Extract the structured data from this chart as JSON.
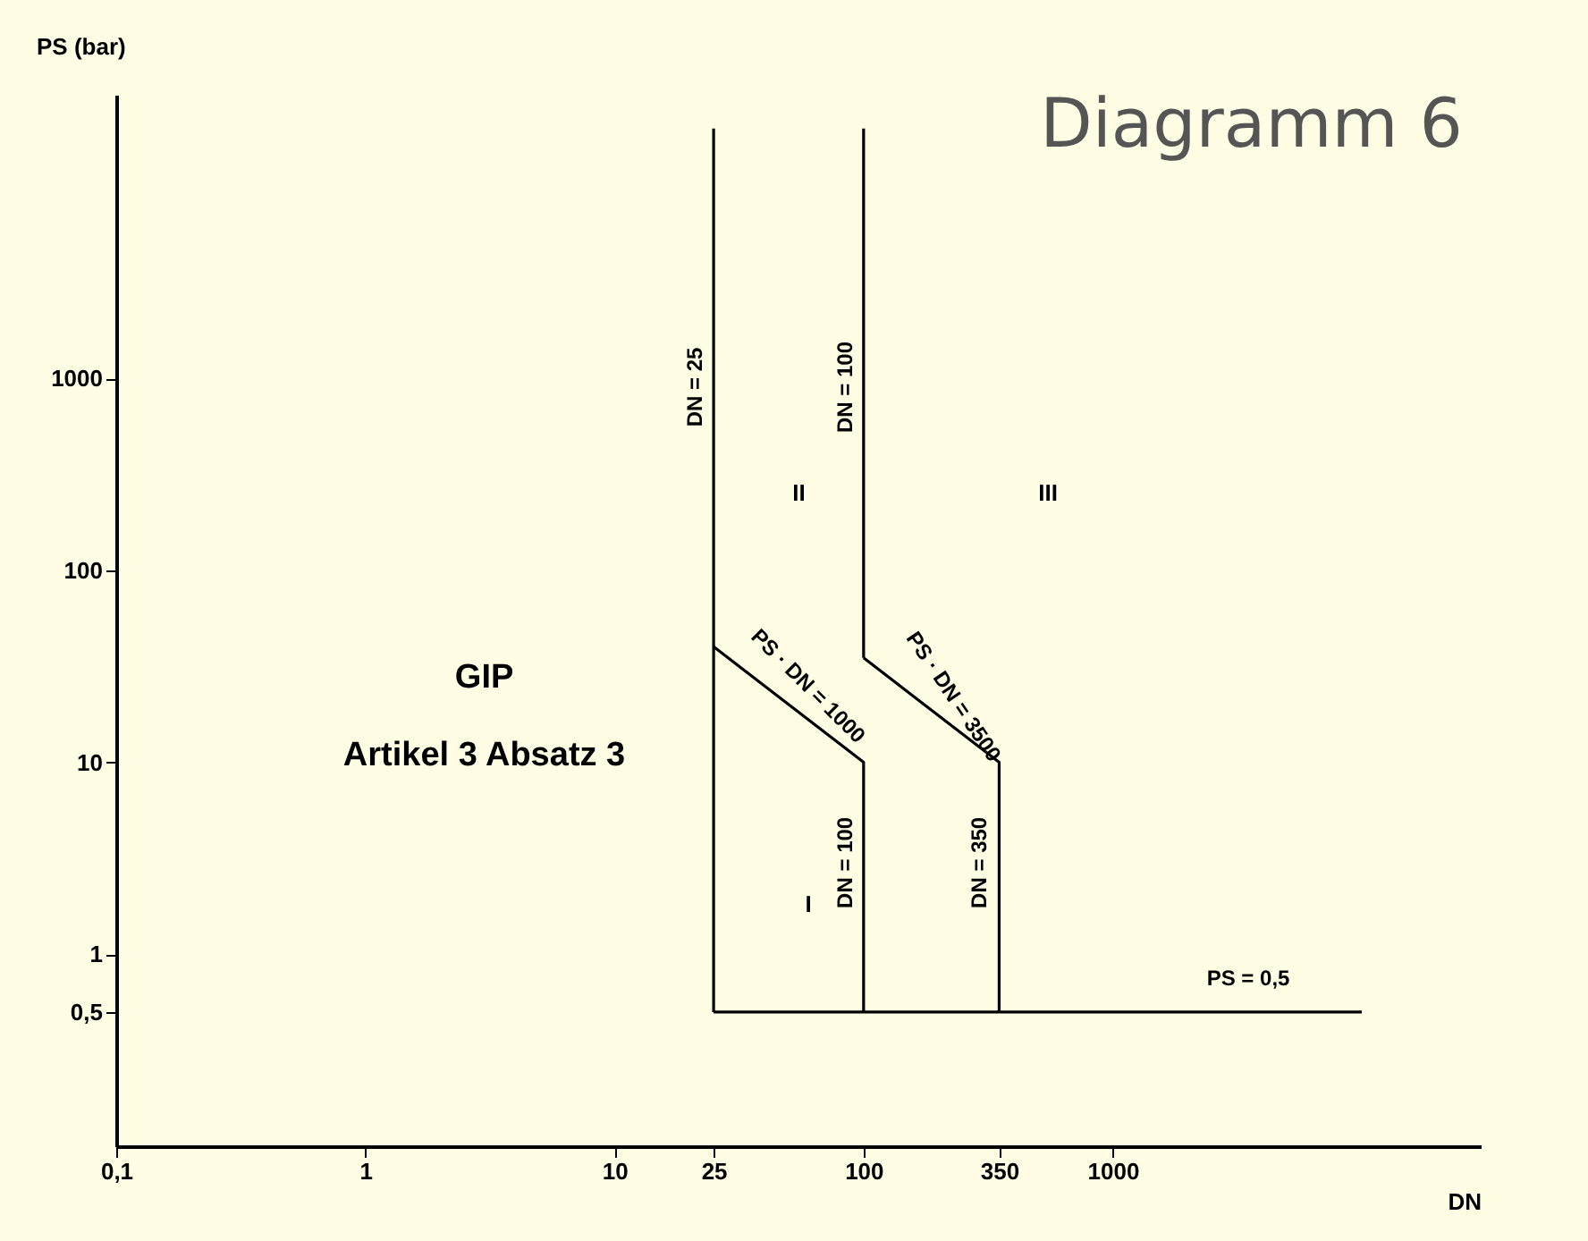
{
  "chart_data": {
    "type": "line",
    "title": "Diagramm 6",
    "xlabel": "DN",
    "ylabel": "PS (bar)",
    "log": "xy",
    "grid": false,
    "marker": "none",
    "line_style": "solid",
    "xlim": [
      0.1,
      30000
    ],
    "ylim": [
      0.1,
      30000
    ],
    "xticks": [
      {
        "value": 0.1,
        "label": "0,1"
      },
      1,
      10,
      25,
      100,
      350,
      1000
    ],
    "yticks": [
      {
        "value": 0.5,
        "label": "0,5"
      },
      1,
      10,
      100,
      1000
    ],
    "series": [
      {
        "color": "#000000",
        "x": [
          25,
          10000
        ],
        "values": [
          0.5,
          0.5
        ]
      },
      {
        "color": "#000000",
        "x": [
          25,
          25
        ],
        "values": [
          0.5,
          20000
        ]
      },
      {
        "color": "#000000",
        "x": [
          25,
          100,
          100
        ],
        "values": [
          40,
          10,
          0.5
        ]
      },
      {
        "color": "#000000",
        "x": [
          100,
          100
        ],
        "values": [
          20000,
          35
        ]
      },
      {
        "color": "#000000",
        "x": [
          100,
          350,
          350
        ],
        "values": [
          35,
          10,
          0.5
        ]
      }
    ],
    "annotations": [
      "DN = 25",
      "DN = 100",
      "PS · DN = 1000",
      "PS · DN = 3500",
      "DN = 100",
      "DN = 350",
      "PS = 0,5",
      "I",
      "II",
      "III",
      "GIP",
      "Artikel 3 Absatz 3"
    ]
  }
}
